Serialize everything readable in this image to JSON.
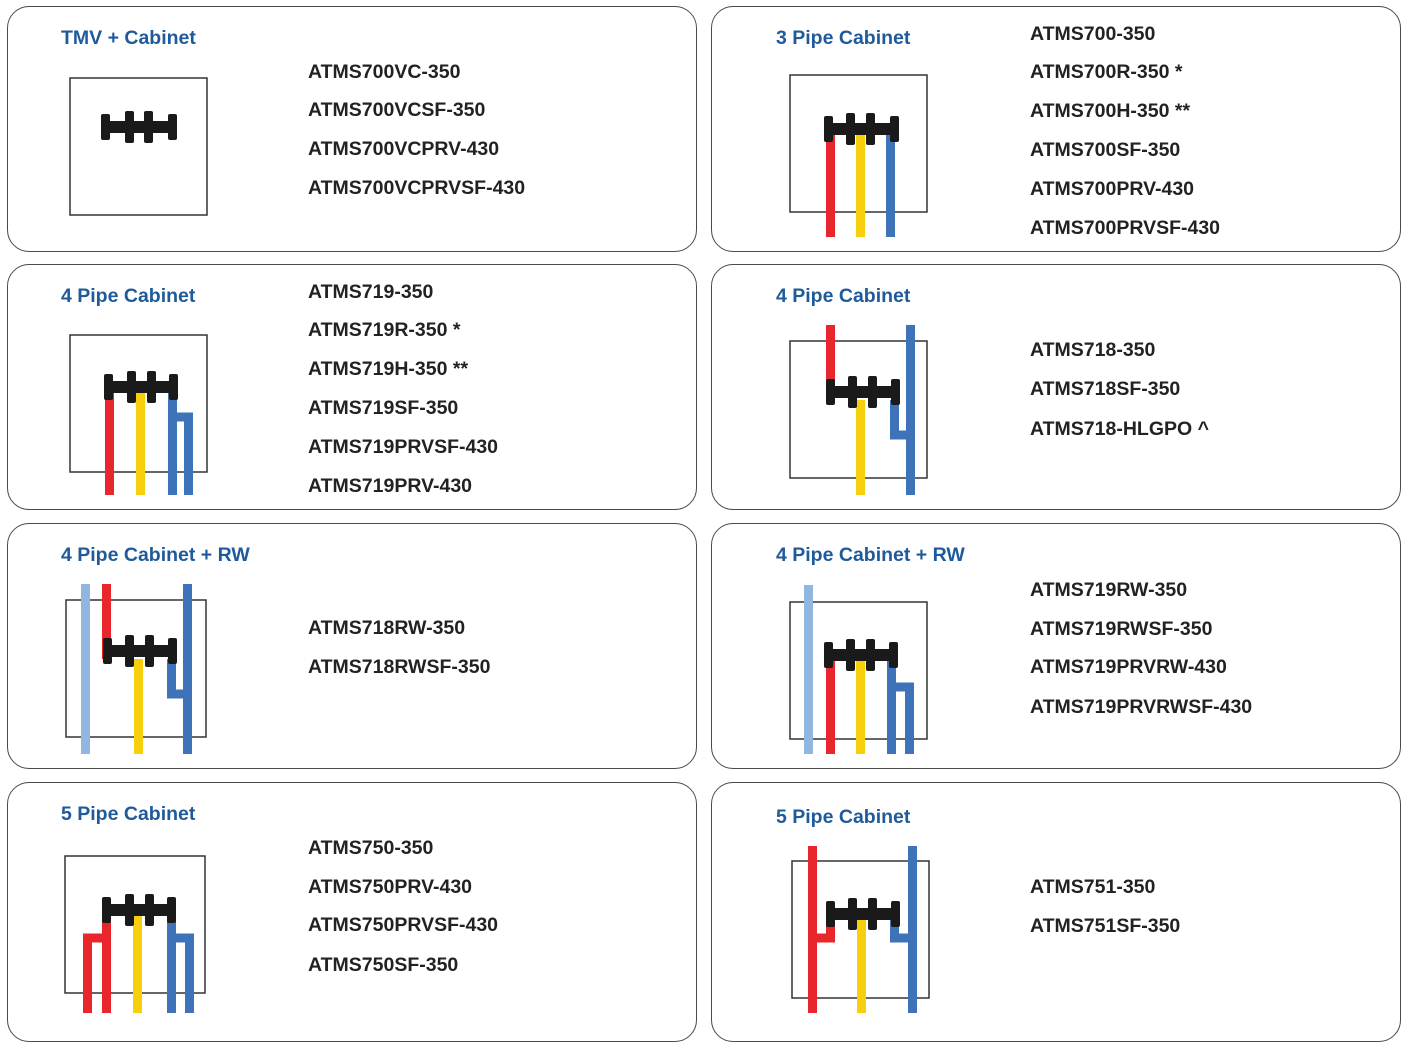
{
  "colors": {
    "title_blue": "#1f5a9a",
    "border": "#4a4a4a",
    "hot_pipe": "#e8262b",
    "warm_pipe": "#f7cf0d",
    "cold_pipe": "#3e73ba",
    "rainwater_pipe": "#8fb7df",
    "valve": "#1a1a1a"
  },
  "cards": [
    {
      "title": "TMV + Cabinet",
      "icon": "tmv-valve-diagram",
      "models": [
        "ATMS700VC-350",
        "ATMS700VCSF-350",
        "ATMS700VCPRV-430",
        "ATMS700VCPRVSF-430"
      ]
    },
    {
      "title": "3 Pipe Cabinet",
      "icon": "three-pipe-diagram",
      "models": [
        "ATMS700-350",
        "ATMS700R-350 *",
        "ATMS700H-350 **",
        "ATMS700SF-350",
        "ATMS700PRV-430",
        "ATMS700PRVSF-430"
      ]
    },
    {
      "title": "4 Pipe Cabinet",
      "icon": "four-pipe-diagram",
      "models": [
        "ATMS719-350",
        "ATMS719R-350 *",
        "ATMS719H-350 **",
        "ATMS719SF-350",
        "ATMS719PRVSF-430",
        "ATMS719PRV-430"
      ]
    },
    {
      "title": "4 Pipe Cabinet",
      "icon": "four-pipe-top-entry-diagram",
      "models": [
        "ATMS718-350",
        "ATMS718SF-350",
        "ATMS718-HLGPO ^"
      ]
    },
    {
      "title": "4 Pipe Cabinet + RW",
      "icon": "four-pipe-rw-top-diagram",
      "models": [
        "ATMS718RW-350",
        "ATMS718RWSF-350"
      ]
    },
    {
      "title": "4 Pipe Cabinet + RW",
      "icon": "four-pipe-rw-bottom-diagram",
      "models": [
        "ATMS719RW-350",
        "ATMS719RWSF-350",
        "ATMS719PRVRW-430",
        "ATMS719PRVRWSF-430"
      ]
    },
    {
      "title": "5 Pipe Cabinet",
      "icon": "five-pipe-diagram",
      "models": [
        "ATMS750-350",
        "ATMS750PRV-430",
        "ATMS750PRVSF-430",
        "ATMS750SF-350"
      ]
    },
    {
      "title": "5 Pipe Cabinet",
      "icon": "five-pipe-top-entry-diagram",
      "models": [
        "ATMS751-350",
        "ATMS751SF-350"
      ]
    }
  ]
}
